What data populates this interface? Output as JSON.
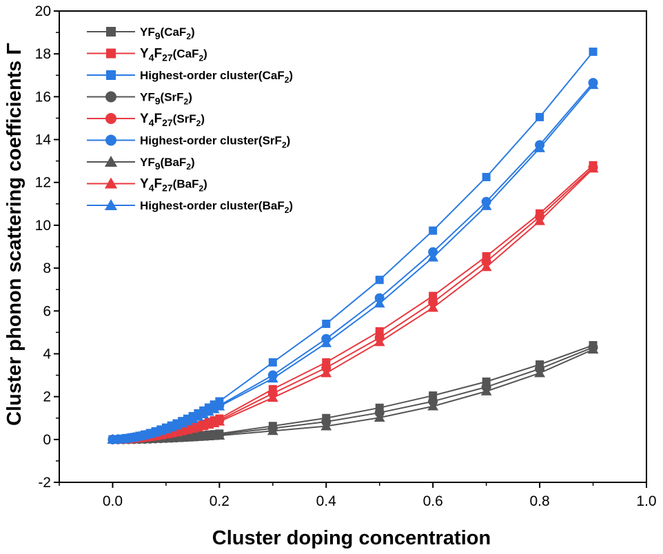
{
  "chart_data": {
    "type": "line",
    "xlabel": "Cluster doping concentration",
    "ylabel": "Cluster phonon scattering coefficients Γ",
    "xlim": [
      -0.1,
      1.0
    ],
    "ylim": [
      -2,
      20
    ],
    "xticks": [
      "0.0",
      "0.2",
      "0.4",
      "0.6",
      "0.8",
      "1.0"
    ],
    "yticks": [
      "-2",
      "0",
      "2",
      "4",
      "6",
      "8",
      "10",
      "12",
      "14",
      "16",
      "18",
      "20"
    ],
    "legend_position": "top-left",
    "x": [
      0.0,
      0.01,
      0.02,
      0.03,
      0.04,
      0.05,
      0.06,
      0.07,
      0.08,
      0.09,
      0.1,
      0.11,
      0.12,
      0.13,
      0.14,
      0.15,
      0.16,
      0.17,
      0.18,
      0.19,
      0.2,
      0.3,
      0.4,
      0.5,
      0.6,
      0.7,
      0.8,
      0.9
    ],
    "series": [
      {
        "name": "YF9(CaF2)",
        "label_main": "YF",
        "label_sub": "9",
        "label_rest_a": "(CaF",
        "label_sub2": "2",
        "label_rest_b": ")",
        "color": "#555555",
        "marker": "square",
        "values": [
          0.0,
          0.002,
          0.005,
          0.01,
          0.016,
          0.023,
          0.031,
          0.04,
          0.051,
          0.063,
          0.076,
          0.09,
          0.106,
          0.122,
          0.14,
          0.159,
          0.18,
          0.201,
          0.224,
          0.248,
          0.273,
          0.63,
          1.0,
          1.48,
          2.05,
          2.7,
          3.5,
          4.4
        ]
      },
      {
        "name": "Y4F27(CaF2)",
        "label_main": "Y",
        "label_sub": "4",
        "label_mid": "F",
        "label_sub_b": "27",
        "label_rest_a": "(CaF",
        "label_sub2": "2",
        "label_rest_b": ")",
        "color": "#e8393f",
        "marker": "square",
        "values": [
          0.0,
          0.005,
          0.016,
          0.034,
          0.057,
          0.085,
          0.118,
          0.155,
          0.197,
          0.243,
          0.293,
          0.346,
          0.403,
          0.463,
          0.527,
          0.594,
          0.664,
          0.737,
          0.813,
          0.892,
          0.975,
          2.35,
          3.6,
          5.05,
          6.7,
          8.55,
          10.55,
          12.8
        ]
      },
      {
        "name": "Highest-order cluster(CaF2)",
        "label_main": "Highest-order cluster(CaF",
        "label_sub2": "2",
        "label_rest_b": ")",
        "color": "#2a7ae2",
        "marker": "square",
        "values": [
          0.0,
          0.01,
          0.035,
          0.07,
          0.115,
          0.17,
          0.23,
          0.3,
          0.38,
          0.465,
          0.555,
          0.65,
          0.75,
          0.86,
          0.97,
          1.09,
          1.22,
          1.35,
          1.49,
          1.63,
          1.78,
          3.6,
          5.4,
          7.45,
          9.75,
          12.25,
          15.05,
          18.1
        ]
      },
      {
        "name": "YF9(SrF2)",
        "label_main": "YF",
        "label_sub": "9",
        "label_rest_a": "(SrF",
        "label_sub2": "2",
        "label_rest_b": ")",
        "color": "#555555",
        "marker": "circle",
        "values": [
          0.0,
          0.002,
          0.004,
          0.008,
          0.013,
          0.019,
          0.026,
          0.034,
          0.043,
          0.053,
          0.064,
          0.076,
          0.089,
          0.103,
          0.118,
          0.134,
          0.151,
          0.169,
          0.188,
          0.208,
          0.23,
          0.52,
          0.83,
          1.25,
          1.78,
          2.45,
          3.3,
          4.3
        ]
      },
      {
        "name": "Y4F27(SrF2)",
        "label_main": "Y",
        "label_sub": "4",
        "label_mid": "F",
        "label_sub_b": "27",
        "label_rest_a": "(SrF",
        "label_sub2": "2",
        "label_rest_b": ")",
        "color": "#e8393f",
        "marker": "circle",
        "values": [
          0.0,
          0.004,
          0.014,
          0.03,
          0.051,
          0.077,
          0.107,
          0.141,
          0.179,
          0.221,
          0.266,
          0.315,
          0.367,
          0.422,
          0.481,
          0.543,
          0.608,
          0.676,
          0.747,
          0.821,
          0.898,
          2.15,
          3.35,
          4.75,
          6.4,
          8.3,
          10.4,
          12.7
        ]
      },
      {
        "name": "Highest-order cluster(SrF2)",
        "label_main": "Highest-order cluster(SrF",
        "label_sub2": "2",
        "label_rest_b": ")",
        "color": "#2a7ae2",
        "marker": "circle",
        "values": [
          0.0,
          0.009,
          0.03,
          0.062,
          0.103,
          0.152,
          0.207,
          0.27,
          0.342,
          0.42,
          0.503,
          0.59,
          0.682,
          0.78,
          0.882,
          0.99,
          1.1,
          1.215,
          1.335,
          1.46,
          1.59,
          3.0,
          4.7,
          6.6,
          8.75,
          11.1,
          13.75,
          16.65
        ]
      },
      {
        "name": "YF9(BaF2)",
        "label_main": "YF",
        "label_sub": "9",
        "label_rest_a": "(BaF",
        "label_sub2": "2",
        "label_rest_b": ")",
        "color": "#555555",
        "marker": "triangle",
        "values": [
          0.0,
          0.001,
          0.003,
          0.006,
          0.01,
          0.015,
          0.021,
          0.027,
          0.034,
          0.042,
          0.051,
          0.061,
          0.072,
          0.083,
          0.095,
          0.108,
          0.122,
          0.137,
          0.152,
          0.168,
          0.185,
          0.4,
          0.62,
          1.02,
          1.55,
          2.25,
          3.1,
          4.2
        ]
      },
      {
        "name": "Y4F27(BaF2)",
        "label_main": "Y",
        "label_sub": "4",
        "label_mid": "F",
        "label_sub_b": "27",
        "label_rest_a": "(BaF",
        "label_sub2": "2",
        "label_rest_b": ")",
        "color": "#e8393f",
        "marker": "triangle",
        "values": [
          0.0,
          0.004,
          0.012,
          0.026,
          0.045,
          0.069,
          0.097,
          0.128,
          0.163,
          0.202,
          0.244,
          0.289,
          0.337,
          0.389,
          0.444,
          0.502,
          0.563,
          0.627,
          0.694,
          0.764,
          0.838,
          1.95,
          3.1,
          4.55,
          6.15,
          8.05,
          10.2,
          12.65
        ]
      },
      {
        "name": "Highest-order cluster(BaF2)",
        "label_main": "Highest-order cluster(BaF",
        "label_sub2": "2",
        "label_rest_b": ")",
        "color": "#2a7ae2",
        "marker": "triangle",
        "values": [
          0.0,
          0.008,
          0.028,
          0.058,
          0.097,
          0.144,
          0.197,
          0.258,
          0.326,
          0.401,
          0.481,
          0.566,
          0.656,
          0.752,
          0.852,
          0.957,
          1.067,
          1.18,
          1.298,
          1.42,
          1.547,
          2.85,
          4.5,
          6.35,
          8.5,
          10.9,
          13.6,
          16.55
        ]
      }
    ]
  }
}
